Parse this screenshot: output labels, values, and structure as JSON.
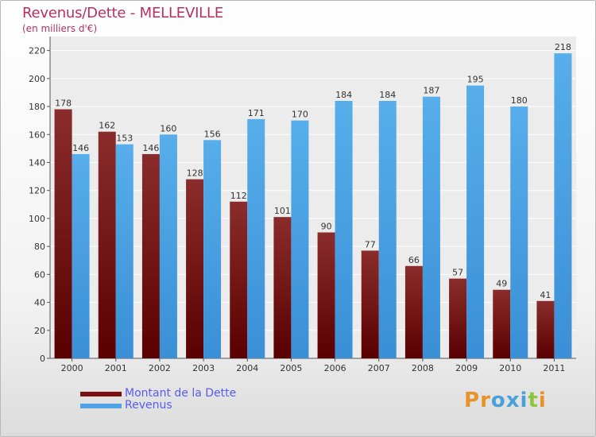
{
  "chart_data": {
    "type": "bar",
    "title": "Revenus/Dette - MELLEVILLE",
    "subtitle": "(en milliers d'€)",
    "categories": [
      "2000",
      "2001",
      "2002",
      "2003",
      "2004",
      "2005",
      "2006",
      "2007",
      "2008",
      "2009",
      "2010",
      "2011"
    ],
    "series": [
      {
        "name": "Montant de la Dette",
        "color": "#7a1010",
        "values": [
          178,
          162,
          146,
          128,
          112,
          101,
          90,
          77,
          66,
          57,
          49,
          41
        ]
      },
      {
        "name": "Revenus",
        "color": "#4fa3e3",
        "values": [
          146,
          153,
          160,
          156,
          171,
          170,
          184,
          184,
          187,
          195,
          180,
          218
        ]
      }
    ],
    "ylim": [
      0,
      230
    ],
    "yticks": [
      0,
      20,
      40,
      60,
      80,
      100,
      120,
      140,
      160,
      180,
      200,
      220
    ],
    "grid": true,
    "legend_position": "bottom-left"
  },
  "logo": {
    "text": "Proxiti",
    "letter_colors": [
      "#e8922a",
      "#e8922a",
      "#4aa0d8",
      "#4aa0d8",
      "#4aa0d8",
      "#8cc63f",
      "#e8922a"
    ]
  }
}
